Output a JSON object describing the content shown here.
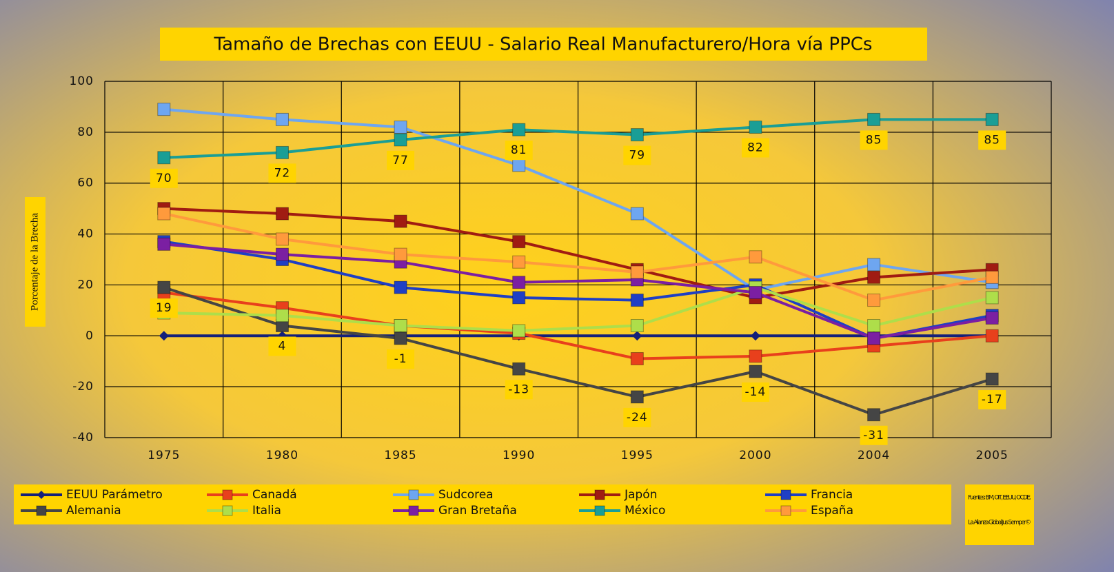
{
  "chart_data": {
    "type": "line",
    "title": "Tamaño de Brechas con EEUU - Salario Real Manufacturero/Hora vía PPCs",
    "y_label": "Porcentaje de la Brecha",
    "notes": [
      "Fuentes: BM, OIT, EEUU, OCDE.",
      "La Alianza Global Jus Semper©"
    ],
    "categories": [
      "1975",
      "1980",
      "1985",
      "1990",
      "1995",
      "2000",
      "2004",
      "2005"
    ],
    "ylim": [
      -40,
      100
    ],
    "yticks": [
      -40,
      -20,
      0,
      20,
      40,
      60,
      80,
      100
    ],
    "grid": true,
    "legend": "bottom",
    "series": [
      {
        "name": "EEUU Parámetro",
        "color": "#14207a",
        "marker": "diamond",
        "values": [
          0,
          0,
          0,
          0,
          0,
          0,
          0,
          0
        ]
      },
      {
        "name": "Canadá",
        "color": "#e8401c",
        "marker": "square",
        "values": [
          17,
          11,
          4,
          1,
          -9,
          -8,
          -4,
          0
        ]
      },
      {
        "name": "Sudcorea",
        "color": "#6ea6f0",
        "marker": "square",
        "values": [
          89,
          85,
          82,
          67,
          48,
          18,
          28,
          21
        ]
      },
      {
        "name": "Japón",
        "color": "#a01c12",
        "marker": "square",
        "values": [
          50,
          48,
          45,
          37,
          26,
          15,
          23,
          26
        ]
      },
      {
        "name": "Francia",
        "color": "#1f3fc4",
        "marker": "square",
        "values": [
          37,
          30,
          19,
          15,
          14,
          20,
          -1,
          8
        ]
      },
      {
        "name": "Alemania",
        "color": "#454545",
        "marker": "square",
        "values": [
          19,
          4,
          -1,
          -13,
          -24,
          -14,
          -31,
          -17
        ],
        "show_labels": true
      },
      {
        "name": "Italia",
        "color": "#aede4a",
        "marker": "square",
        "values": [
          9,
          8,
          4,
          2,
          4,
          19,
          4,
          15
        ]
      },
      {
        "name": "Gran Bretaña",
        "color": "#7b1fa2",
        "marker": "square",
        "values": [
          36,
          32,
          29,
          21,
          22,
          17,
          -1,
          7
        ]
      },
      {
        "name": "México",
        "color": "#1a9e96",
        "marker": "square",
        "values": [
          70,
          72,
          77,
          81,
          79,
          82,
          85,
          85
        ],
        "show_labels": true
      },
      {
        "name": "España",
        "color": "#ff9a3c",
        "marker": "square",
        "values": [
          48,
          38,
          32,
          29,
          25,
          31,
          14,
          23
        ]
      }
    ]
  }
}
